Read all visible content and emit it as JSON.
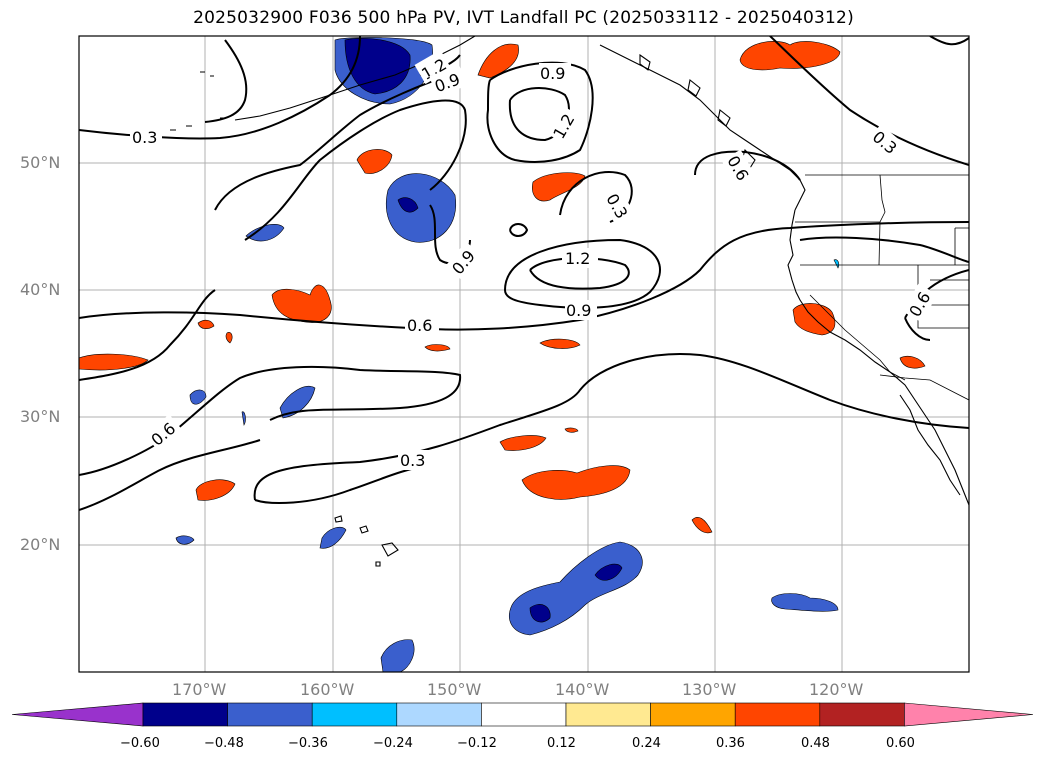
{
  "title": "2025032900 F036 500 hPa PV, IVT Landfall PC (2025033112 - 2025040312)",
  "lat_labels": [
    "50°N",
    "40°N",
    "30°N",
    "20°N"
  ],
  "lon_labels": [
    "170°W",
    "160°W",
    "150°W",
    "140°W",
    "130°W",
    "120°W"
  ],
  "contour_labels": [
    "0.3",
    "1.2",
    "0.9",
    "0.9",
    "1.2",
    "0.3",
    "0.6",
    "0.9",
    "1.2",
    "0.9",
    "0.6",
    "0.6",
    "0.3",
    "0.6",
    "0.3",
    "0.6"
  ],
  "colorbar": {
    "colors": [
      "#9932cc",
      "#00008b",
      "#3a5fcd",
      "#00bfff",
      "#add8ff",
      "#ffffff",
      "#ffe991",
      "#ffa500",
      "#ff4500",
      "#b22222",
      "#ff82ab"
    ],
    "ticks": [
      "−0.60",
      "−0.48",
      "−0.36",
      "−0.24",
      "−0.12",
      "0.12",
      "0.24",
      "0.36",
      "0.48",
      "0.60"
    ]
  }
}
